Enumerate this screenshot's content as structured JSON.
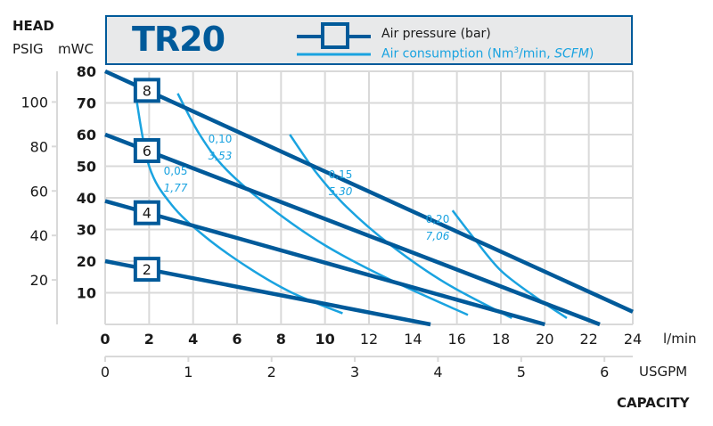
{
  "header": {
    "head_label": "HEAD",
    "psig_label": "PSIG",
    "mwc_label": "mWC",
    "title": "TR20"
  },
  "legend": {
    "pressure_label": "Air pressure (bar)",
    "consumption_label_prefix": "Air consumption (Nm",
    "consumption_sup": "3",
    "consumption_label_mid": "/min, ",
    "consumption_label_italic": "SCFM",
    "consumption_label_suffix": ")"
  },
  "axes": {
    "x_unit_lmin": "l/min",
    "x_unit_usgpm": "USGPM",
    "capacity_label": "CAPACITY",
    "x_ticks_lmin": [
      "0",
      "2",
      "4",
      "6",
      "8",
      "10",
      "12",
      "14",
      "16",
      "18",
      "20",
      "22",
      "24"
    ],
    "x_ticks_usgpm": [
      "0",
      "1",
      "2",
      "3",
      "4",
      "5",
      "6"
    ],
    "y_ticks_mwc": [
      "80",
      "70",
      "60",
      "50",
      "40",
      "30",
      "20",
      "10"
    ],
    "y_ticks_psig": [
      "100",
      "80",
      "60",
      "40",
      "20"
    ]
  },
  "colors": {
    "pressure": "#005a9a",
    "consumption": "#1aa3e0",
    "grid": "#d9d9d9",
    "legend_bg": "#e8e9ea"
  },
  "chart_data": {
    "type": "line",
    "title": "TR20",
    "xlabel": "CAPACITY (l/min, USGPM)",
    "ylabel": "HEAD (mWC, PSIG)",
    "xlim": [
      0,
      24
    ],
    "ylim": [
      0,
      80
    ],
    "grid": true,
    "legend_position": "top",
    "series": [
      {
        "name": "Air pressure 8 bar",
        "label": "8",
        "kind": "pressure",
        "points": [
          [
            0,
            80
          ],
          [
            24,
            4
          ]
        ]
      },
      {
        "name": "Air pressure 6 bar",
        "label": "6",
        "kind": "pressure",
        "points": [
          [
            0,
            60
          ],
          [
            22.5,
            0
          ]
        ]
      },
      {
        "name": "Air pressure 4 bar",
        "label": "4",
        "kind": "pressure",
        "points": [
          [
            0,
            39
          ],
          [
            20,
            0
          ]
        ]
      },
      {
        "name": "Air pressure 2 bar",
        "label": "2",
        "kind": "pressure",
        "points": [
          [
            0,
            20
          ],
          [
            14.8,
            0
          ]
        ]
      },
      {
        "name": "Air consumption 0,05 Nm3/min (1,77 SCFM)",
        "label": "0,05",
        "label2": "1,77",
        "kind": "consumption",
        "points": [
          [
            1.4,
            72
          ],
          [
            2.0,
            50
          ],
          [
            3.0,
            38
          ],
          [
            4.5,
            28
          ],
          [
            6.5,
            18
          ],
          [
            8.5,
            10
          ],
          [
            10.8,
            3.5
          ]
        ]
      },
      {
        "name": "Air consumption 0,10 Nm3/min (3,53 SCFM)",
        "label": "0,10",
        "label2": "3,53",
        "kind": "consumption",
        "points": [
          [
            3.3,
            73
          ],
          [
            4.3,
            60
          ],
          [
            5.5,
            49
          ],
          [
            7.5,
            37
          ],
          [
            10.0,
            25
          ],
          [
            13.0,
            14
          ],
          [
            16.5,
            3
          ]
        ]
      },
      {
        "name": "Air consumption 0,15 Nm3/min (5,30 SCFM)",
        "label": "0,15",
        "label2": "5,30",
        "kind": "consumption",
        "points": [
          [
            8.4,
            60
          ],
          [
            9.6,
            48
          ],
          [
            11.0,
            37
          ],
          [
            13.0,
            25
          ],
          [
            15.5,
            13
          ],
          [
            18.5,
            2
          ]
        ]
      },
      {
        "name": "Air consumption 0,20 Nm3/min (7,06 SCFM)",
        "label": "0,20",
        "label2": "7,06",
        "kind": "consumption",
        "points": [
          [
            15.8,
            36
          ],
          [
            16.8,
            27
          ],
          [
            18.0,
            17
          ],
          [
            19.5,
            9
          ],
          [
            21.0,
            2
          ]
        ]
      }
    ],
    "secondary_axes": {
      "psig_ticks": [
        100,
        80,
        60,
        40,
        20
      ],
      "usgpm_ticks": [
        0,
        1,
        2,
        3,
        4,
        5,
        6
      ]
    }
  }
}
